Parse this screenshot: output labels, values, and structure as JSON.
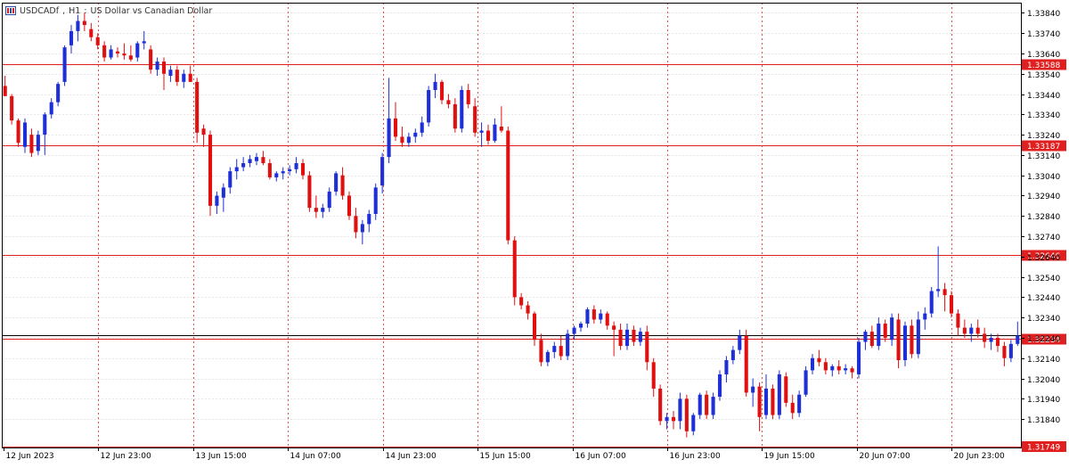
{
  "title": {
    "symbol": "USDCADf",
    "timeframe": "H1",
    "description": "US Dollar vs Canadian Dollar"
  },
  "colors": {
    "bull": "#1e2fd6",
    "bear": "#e01010",
    "grid": "#e6e6e6",
    "vgrid": "#e05050",
    "hline": "#e02020",
    "axis": "#000000"
  },
  "chart_data": {
    "type": "candlestick",
    "ylim": [
      1.317,
      1.3389
    ],
    "y_ticks": [
      "1.33840",
      "1.33740",
      "1.33640",
      "1.33540",
      "1.33440",
      "1.33340",
      "1.33240",
      "1.33140",
      "1.33040",
      "1.32940",
      "1.32840",
      "1.32740",
      "1.32640",
      "1.32540",
      "1.32440",
      "1.32340",
      "1.32240",
      "1.32140",
      "1.32040",
      "1.31940",
      "1.31840"
    ],
    "x_labels": [
      "12 Jun 2023",
      "12 Jun 23:00",
      "13 Jun 15:00",
      "14 Jun 07:00",
      "14 Jun 23:00",
      "15 Jun 15:00",
      "16 Jun 07:00",
      "16 Jun 23:00",
      "19 Jun 15:00",
      "20 Jun 07:00",
      "20 Jun 23:00"
    ],
    "vertical_separators": 8,
    "level_lines": [
      {
        "label": "1.33588",
        "value": 1.33588
      },
      {
        "label": "1.33187",
        "value": 1.33187
      },
      {
        "label": "1.32646",
        "value": 1.32646
      },
      {
        "label": "1.32234",
        "value": 1.32234
      }
    ],
    "current_price_line": {
      "value": 1.32254
    },
    "bottom_label": {
      "label": "1.31749",
      "value": 1.31749
    },
    "candles": [
      [
        1.3348,
        1.3353,
        1.3343,
        1.3343
      ],
      [
        1.3343,
        1.3344,
        1.3329,
        1.3331
      ],
      [
        1.3331,
        1.3332,
        1.3318,
        1.332
      ],
      [
        1.3318,
        1.3332,
        1.3315,
        1.333
      ],
      [
        1.3324,
        1.3327,
        1.3313,
        1.3315
      ],
      [
        1.3316,
        1.3326,
        1.3314,
        1.3324
      ],
      [
        1.3324,
        1.3335,
        1.3314,
        1.3334
      ],
      [
        1.3334,
        1.3342,
        1.3332,
        1.334
      ],
      [
        1.334,
        1.335,
        1.3338,
        1.3349
      ],
      [
        1.335,
        1.3368,
        1.3348,
        1.3367
      ],
      [
        1.3368,
        1.3378,
        1.3364,
        1.3375
      ],
      [
        1.3375,
        1.3383,
        1.337,
        1.338
      ],
      [
        1.338,
        1.3384,
        1.3375,
        1.3378
      ],
      [
        1.3376,
        1.3379,
        1.337,
        1.3372
      ],
      [
        1.3372,
        1.3374,
        1.3366,
        1.3368
      ],
      [
        1.3368,
        1.337,
        1.336,
        1.3362
      ],
      [
        1.3362,
        1.3368,
        1.3361,
        1.3366
      ],
      [
        1.3365,
        1.3367,
        1.3362,
        1.3364
      ],
      [
        1.3364,
        1.3369,
        1.3361,
        1.3363
      ],
      [
        1.3363,
        1.3368,
        1.336,
        1.3361
      ],
      [
        1.3362,
        1.337,
        1.336,
        1.3369
      ],
      [
        1.3369,
        1.3375,
        1.3366,
        1.337
      ],
      [
        1.3366,
        1.3368,
        1.3354,
        1.3356
      ],
      [
        1.3356,
        1.3362,
        1.3353,
        1.336
      ],
      [
        1.336,
        1.3362,
        1.3346,
        1.3354
      ],
      [
        1.3353,
        1.3358,
        1.335,
        1.3356
      ],
      [
        1.3356,
        1.3358,
        1.3348,
        1.335
      ],
      [
        1.335,
        1.3356,
        1.3347,
        1.3354
      ],
      [
        1.3354,
        1.3358,
        1.335,
        1.335
      ],
      [
        1.335,
        1.3352,
        1.332,
        1.3325
      ],
      [
        1.3327,
        1.3329,
        1.3318,
        1.3324
      ],
      [
        1.3324,
        1.3326,
        1.3284,
        1.3289
      ],
      [
        1.3289,
        1.3296,
        1.3285,
        1.3294
      ],
      [
        1.3293,
        1.33,
        1.3286,
        1.3298
      ],
      [
        1.3298,
        1.3308,
        1.3295,
        1.3306
      ],
      [
        1.3306,
        1.3312,
        1.3302,
        1.3308
      ],
      [
        1.3308,
        1.3313,
        1.3306,
        1.331
      ],
      [
        1.331,
        1.3314,
        1.3308,
        1.3312
      ],
      [
        1.3311,
        1.3315,
        1.3309,
        1.3313
      ],
      [
        1.3313,
        1.3316,
        1.3309,
        1.331
      ],
      [
        1.331,
        1.3312,
        1.3302,
        1.3303
      ],
      [
        1.3303,
        1.3306,
        1.3301,
        1.3305
      ],
      [
        1.3305,
        1.3308,
        1.3302,
        1.3306
      ],
      [
        1.3306,
        1.3309,
        1.3304,
        1.3307
      ],
      [
        1.3307,
        1.3313,
        1.3305,
        1.331
      ],
      [
        1.331,
        1.3312,
        1.3302,
        1.3304
      ],
      [
        1.3304,
        1.3306,
        1.3286,
        1.3288
      ],
      [
        1.3288,
        1.3294,
        1.3283,
        1.3286
      ],
      [
        1.3286,
        1.329,
        1.3283,
        1.3288
      ],
      [
        1.3288,
        1.3298,
        1.3286,
        1.3296
      ],
      [
        1.3296,
        1.3306,
        1.3294,
        1.3305
      ],
      [
        1.3304,
        1.3308,
        1.3292,
        1.3294
      ],
      [
        1.3294,
        1.3296,
        1.3282,
        1.3284
      ],
      [
        1.3284,
        1.3288,
        1.3273,
        1.3276
      ],
      [
        1.3276,
        1.3282,
        1.327,
        1.328
      ],
      [
        1.328,
        1.3287,
        1.3276,
        1.3285
      ],
      [
        1.3285,
        1.33,
        1.3282,
        1.3298
      ],
      [
        1.3299,
        1.3315,
        1.3295,
        1.3313
      ],
      [
        1.3313,
        1.3352,
        1.331,
        1.3332
      ],
      [
        1.3332,
        1.334,
        1.3321,
        1.3323
      ],
      [
        1.3323,
        1.3328,
        1.3318,
        1.332
      ],
      [
        1.332,
        1.3325,
        1.3318,
        1.3323
      ],
      [
        1.3323,
        1.3327,
        1.332,
        1.3325
      ],
      [
        1.3325,
        1.3333,
        1.3323,
        1.333
      ],
      [
        1.333,
        1.3348,
        1.3328,
        1.3346
      ],
      [
        1.3346,
        1.3354,
        1.3342,
        1.335
      ],
      [
        1.335,
        1.3351,
        1.3339,
        1.3341
      ],
      [
        1.3341,
        1.3344,
        1.3337,
        1.3339
      ],
      [
        1.3339,
        1.3342,
        1.3325,
        1.3327
      ],
      [
        1.3327,
        1.3348,
        1.3325,
        1.3346
      ],
      [
        1.3346,
        1.3349,
        1.3337,
        1.3339
      ],
      [
        1.3338,
        1.3342,
        1.3323,
        1.3325
      ],
      [
        1.3325,
        1.333,
        1.3318,
        1.3326
      ],
      [
        1.3326,
        1.3329,
        1.3319,
        1.3321
      ],
      [
        1.3321,
        1.3332,
        1.332,
        1.3329
      ],
      [
        1.3328,
        1.3338,
        1.3325,
        1.3326
      ],
      [
        1.3326,
        1.3328,
        1.327,
        1.3272
      ],
      [
        1.3272,
        1.3274,
        1.324,
        1.3244
      ],
      [
        1.3244,
        1.3246,
        1.3238,
        1.324
      ],
      [
        1.324,
        1.3242,
        1.3233,
        1.3236
      ],
      [
        1.3236,
        1.3237,
        1.322,
        1.3223
      ],
      [
        1.3223,
        1.3226,
        1.321,
        1.3212
      ],
      [
        1.3212,
        1.3218,
        1.321,
        1.3217
      ],
      [
        1.3217,
        1.3222,
        1.3214,
        1.322
      ],
      [
        1.322,
        1.3225,
        1.3213,
        1.3215
      ],
      [
        1.3215,
        1.3228,
        1.3213,
        1.3226
      ],
      [
        1.3226,
        1.323,
        1.3223,
        1.3229
      ],
      [
        1.3229,
        1.3232,
        1.3227,
        1.3231
      ],
      [
        1.3231,
        1.3239,
        1.3229,
        1.3238
      ],
      [
        1.3238,
        1.324,
        1.3231,
        1.3233
      ],
      [
        1.3233,
        1.3238,
        1.3231,
        1.3236
      ],
      [
        1.3236,
        1.3237,
        1.3228,
        1.323
      ],
      [
        1.323,
        1.3232,
        1.3215,
        1.3228
      ],
      [
        1.3228,
        1.3231,
        1.3218,
        1.322
      ],
      [
        1.322,
        1.3231,
        1.3218,
        1.3228
      ],
      [
        1.3228,
        1.323,
        1.322,
        1.3222
      ],
      [
        1.3222,
        1.3229,
        1.322,
        1.3227
      ],
      [
        1.3227,
        1.323,
        1.3208,
        1.3212
      ],
      [
        1.3212,
        1.3214,
        1.3195,
        1.3199
      ],
      [
        1.3199,
        1.3201,
        1.3181,
        1.3183
      ],
      [
        1.3183,
        1.3187,
        1.3179,
        1.3185
      ],
      [
        1.3185,
        1.3188,
        1.3179,
        1.3183
      ],
      [
        1.3183,
        1.3197,
        1.3179,
        1.3194
      ],
      [
        1.3194,
        1.3196,
        1.3175,
        1.3178
      ],
      [
        1.3178,
        1.3187,
        1.3176,
        1.3186
      ],
      [
        1.3186,
        1.3197,
        1.3184,
        1.3196
      ],
      [
        1.3196,
        1.3198,
        1.3184,
        1.3186
      ],
      [
        1.3186,
        1.3197,
        1.3184,
        1.3195
      ],
      [
        1.3195,
        1.3208,
        1.3193,
        1.3206
      ],
      [
        1.3206,
        1.3215,
        1.3202,
        1.3213
      ],
      [
        1.3213,
        1.322,
        1.3211,
        1.3218
      ],
      [
        1.3218,
        1.3228,
        1.3216,
        1.3225
      ],
      [
        1.3225,
        1.3228,
        1.3195,
        1.3197
      ],
      [
        1.3197,
        1.3204,
        1.319,
        1.32
      ],
      [
        1.32,
        1.3202,
        1.3178,
        1.3185
      ],
      [
        1.3186,
        1.3206,
        1.3184,
        1.3199
      ],
      [
        1.3199,
        1.3201,
        1.3184,
        1.3186
      ],
      [
        1.3186,
        1.3208,
        1.3184,
        1.3206
      ],
      [
        1.3205,
        1.3207,
        1.319,
        1.3192
      ],
      [
        1.3192,
        1.3196,
        1.3184,
        1.3187
      ],
      [
        1.3187,
        1.3198,
        1.3185,
        1.3196
      ],
      [
        1.3196,
        1.321,
        1.3195,
        1.3208
      ],
      [
        1.3208,
        1.3216,
        1.3206,
        1.3214
      ],
      [
        1.3214,
        1.3218,
        1.321,
        1.3212
      ],
      [
        1.3212,
        1.3214,
        1.3206,
        1.3208
      ],
      [
        1.3208,
        1.3211,
        1.3205,
        1.321
      ],
      [
        1.321,
        1.3213,
        1.3206,
        1.3208
      ],
      [
        1.3208,
        1.3211,
        1.3206,
        1.3209
      ],
      [
        1.3209,
        1.321,
        1.3204,
        1.3207
      ],
      [
        1.3206,
        1.3224,
        1.3204,
        1.3222
      ],
      [
        1.3222,
        1.3228,
        1.3218,
        1.3227
      ],
      [
        1.3227,
        1.323,
        1.3219,
        1.322
      ],
      [
        1.322,
        1.3234,
        1.3218,
        1.3231
      ],
      [
        1.3231,
        1.3233,
        1.3222,
        1.3224
      ],
      [
        1.3223,
        1.3236,
        1.322,
        1.3234
      ],
      [
        1.3233,
        1.3236,
        1.3209,
        1.3213
      ],
      [
        1.3213,
        1.3232,
        1.321,
        1.323
      ],
      [
        1.323,
        1.3233,
        1.3214,
        1.3216
      ],
      [
        1.3216,
        1.3237,
        1.3214,
        1.3233
      ],
      [
        1.3233,
        1.3239,
        1.3228,
        1.3236
      ],
      [
        1.3236,
        1.3249,
        1.3234,
        1.3247
      ],
      [
        1.3247,
        1.3269,
        1.3244,
        1.3248
      ],
      [
        1.3248,
        1.3251,
        1.3237,
        1.3245
      ],
      [
        1.3245,
        1.3247,
        1.3234,
        1.3236
      ],
      [
        1.3236,
        1.3238,
        1.3225,
        1.3229
      ],
      [
        1.3229,
        1.3233,
        1.3224,
        1.3226
      ],
      [
        1.3226,
        1.3231,
        1.3222,
        1.3229
      ],
      [
        1.3229,
        1.3233,
        1.3224,
        1.3226
      ],
      [
        1.3226,
        1.3229,
        1.3219,
        1.3222
      ],
      [
        1.3222,
        1.3226,
        1.3218,
        1.3224
      ],
      [
        1.3224,
        1.3226,
        1.3217,
        1.322
      ],
      [
        1.322,
        1.3222,
        1.321,
        1.3214
      ],
      [
        1.3214,
        1.3223,
        1.3212,
        1.3221
      ],
      [
        1.3221,
        1.3232,
        1.322,
        1.3225
      ]
    ]
  }
}
